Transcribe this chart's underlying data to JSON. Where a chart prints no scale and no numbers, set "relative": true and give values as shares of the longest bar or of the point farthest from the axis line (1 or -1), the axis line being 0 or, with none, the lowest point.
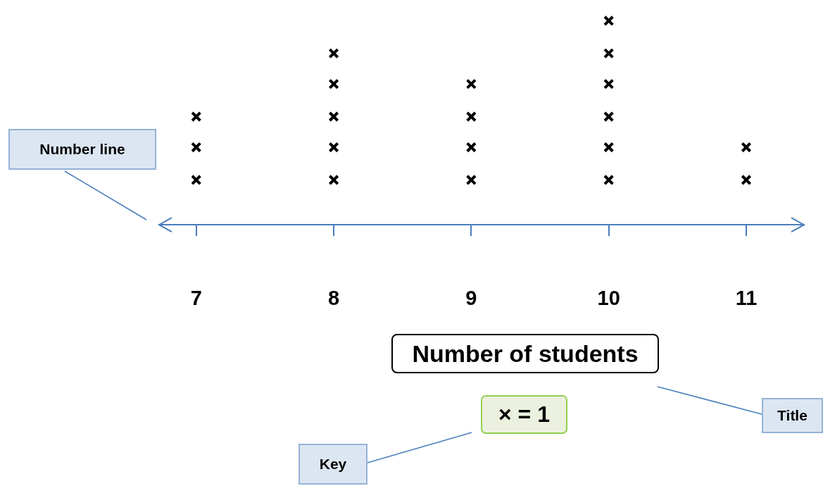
{
  "chart_data": {
    "type": "scatter",
    "title": "Number of students",
    "x": [
      7,
      7,
      7,
      8,
      8,
      8,
      8,
      8,
      9,
      9,
      9,
      9,
      10,
      10,
      10,
      10,
      10,
      10,
      11,
      11
    ],
    "values": [
      0.22,
      0.38,
      0.53,
      0.22,
      0.38,
      0.53,
      0.69,
      0.84,
      0.22,
      0.38,
      0.53,
      0.69,
      0.22,
      0.38,
      0.53,
      0.69,
      0.84,
      1,
      0.22,
      0.38
    ],
    "relative": true,
    "color": "#000000",
    "marker": "cross",
    "xlim": [
      6.73,
      11.42
    ],
    "xticks": [
      7,
      8,
      9,
      10,
      11
    ],
    "tick_labels": "x",
    "grid": false,
    "legend": false,
    "annotations": [
      "Number line",
      "Title",
      "Key",
      "× = 1"
    ]
  }
}
